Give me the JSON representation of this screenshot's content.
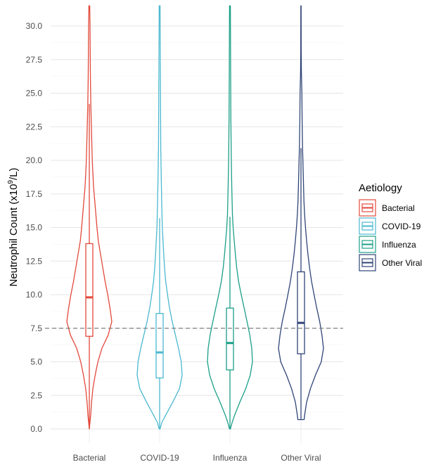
{
  "chart_data": {
    "type": "violin",
    "title": "",
    "xlabel": "",
    "ylabel": "Neutrophil Count (x10",
    "ylabel_superscript": "9",
    "ylabel_suffix": "/L)",
    "ylim": [
      -1.5,
      31.5
    ],
    "yticks": [
      0,
      2.5,
      5,
      7.5,
      10,
      12.5,
      15,
      17.5,
      20,
      22.5,
      25,
      27.5,
      30
    ],
    "ytick_labels": [
      "0.0",
      "2.5",
      "5.0",
      "7.5",
      "10.0",
      "12.5",
      "15.0",
      "17.5",
      "20.0",
      "22.5",
      "25.0",
      "27.5",
      "30.0"
    ],
    "grid": true,
    "reference_line": {
      "y": 7.5,
      "style": "dashed",
      "color": "#7f7f7f"
    },
    "categories": [
      "Bacterial",
      "COVID-19",
      "Influenza",
      "Other Viral"
    ],
    "series": [
      {
        "name": "Bacterial",
        "color": "#e2493b",
        "box": {
          "q1": 6.9,
          "median": 9.8,
          "q3": 13.8,
          "whisker_low": 0.0,
          "whisker_high": 24.2
        },
        "density": [
          [
            0,
            0.0
          ],
          [
            1,
            0.06
          ],
          [
            2,
            0.1
          ],
          [
            3,
            0.16
          ],
          [
            4,
            0.26
          ],
          [
            5,
            0.38
          ],
          [
            6,
            0.56
          ],
          [
            7,
            0.84
          ],
          [
            8,
            1.0
          ],
          [
            9,
            0.92
          ],
          [
            10,
            0.82
          ],
          [
            11,
            0.7
          ],
          [
            12,
            0.6
          ],
          [
            13,
            0.5
          ],
          [
            14,
            0.4
          ],
          [
            15,
            0.34
          ],
          [
            16,
            0.29
          ],
          [
            17,
            0.24
          ],
          [
            18,
            0.19
          ],
          [
            19,
            0.16
          ],
          [
            20,
            0.13
          ],
          [
            22,
            0.1
          ],
          [
            24,
            0.07
          ],
          [
            26,
            0.05
          ],
          [
            28,
            0.04
          ],
          [
            30,
            0.03
          ],
          [
            31.5,
            0.02
          ]
        ]
      },
      {
        "name": "COVID-19",
        "color": "#4bb8d0",
        "box": {
          "q1": 3.8,
          "median": 5.7,
          "q3": 8.6,
          "whisker_low": 0.0,
          "whisker_high": 15.7
        },
        "density": [
          [
            0,
            0.02
          ],
          [
            0.5,
            0.1
          ],
          [
            1,
            0.26
          ],
          [
            2,
            0.58
          ],
          [
            3,
            0.88
          ],
          [
            4,
            1.0
          ],
          [
            5,
            0.96
          ],
          [
            6,
            0.84
          ],
          [
            7,
            0.7
          ],
          [
            8,
            0.56
          ],
          [
            9,
            0.44
          ],
          [
            10,
            0.35
          ],
          [
            11,
            0.27
          ],
          [
            12,
            0.22
          ],
          [
            13,
            0.18
          ],
          [
            14,
            0.15
          ],
          [
            15,
            0.12
          ],
          [
            17,
            0.09
          ],
          [
            19,
            0.07
          ],
          [
            21,
            0.05
          ],
          [
            24,
            0.04
          ],
          [
            27,
            0.03
          ],
          [
            31.5,
            0.02
          ]
        ]
      },
      {
        "name": "Influenza",
        "color": "#1b9f88",
        "box": {
          "q1": 4.4,
          "median": 6.4,
          "q3": 9.0,
          "whisker_low": 0.0,
          "whisker_high": 15.8
        },
        "density": [
          [
            0,
            0.02
          ],
          [
            0.5,
            0.1
          ],
          [
            1,
            0.2
          ],
          [
            2,
            0.44
          ],
          [
            3,
            0.7
          ],
          [
            4,
            0.9
          ],
          [
            5,
            1.0
          ],
          [
            6,
            0.97
          ],
          [
            7,
            0.88
          ],
          [
            8,
            0.76
          ],
          [
            9,
            0.63
          ],
          [
            10,
            0.5
          ],
          [
            11,
            0.38
          ],
          [
            12,
            0.3
          ],
          [
            13,
            0.24
          ],
          [
            14,
            0.19
          ],
          [
            15,
            0.14
          ],
          [
            16,
            0.11
          ],
          [
            18,
            0.08
          ],
          [
            20,
            0.06
          ],
          [
            23,
            0.04
          ],
          [
            26,
            0.03
          ],
          [
            31.5,
            0.02
          ]
        ]
      },
      {
        "name": "Other Viral",
        "color": "#2f4476",
        "box": {
          "q1": 5.6,
          "median": 7.9,
          "q3": 11.7,
          "whisker_low": 0.7,
          "whisker_high": 20.9
        },
        "density": [
          [
            0.7,
            0.14
          ],
          [
            1,
            0.16
          ],
          [
            2,
            0.25
          ],
          [
            3,
            0.42
          ],
          [
            4,
            0.64
          ],
          [
            5,
            0.9
          ],
          [
            6,
            1.0
          ],
          [
            7,
            0.93
          ],
          [
            8,
            0.83
          ],
          [
            9,
            0.7
          ],
          [
            10,
            0.58
          ],
          [
            11,
            0.47
          ],
          [
            12,
            0.38
          ],
          [
            13,
            0.31
          ],
          [
            14,
            0.25
          ],
          [
            15,
            0.2
          ],
          [
            16,
            0.16
          ],
          [
            17,
            0.13
          ],
          [
            19,
            0.1
          ],
          [
            21,
            0.07
          ],
          [
            23,
            0.05
          ],
          [
            25,
            0.04
          ],
          [
            26.5,
            0.02
          ],
          [
            28,
            0.01
          ],
          [
            31.5,
            0.005
          ]
        ]
      }
    ],
    "legend": {
      "title": "Aetiology",
      "position": "right",
      "items": [
        "Bacterial",
        "COVID-19",
        "Influenza",
        "Other Viral"
      ]
    }
  }
}
